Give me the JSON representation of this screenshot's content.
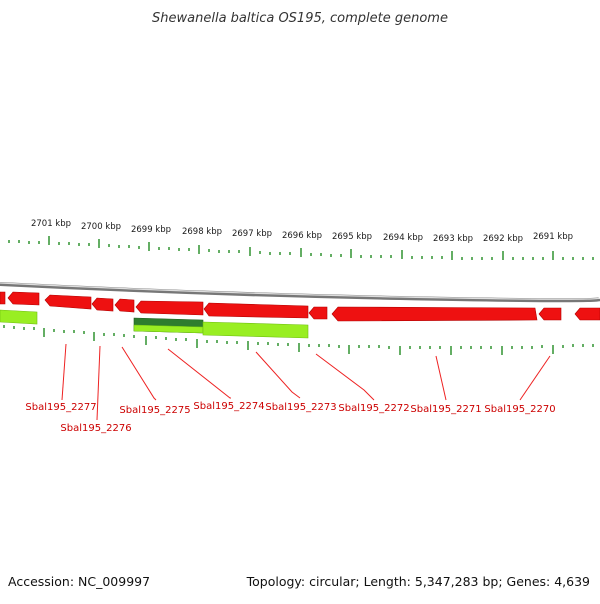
{
  "title": "Shewanella baltica OS195, complete genome",
  "footer": {
    "accession": "Accession: NC_009997",
    "summary": "Topology: circular; Length: 5,347,283 bp; Genes: 4,639"
  },
  "colors": {
    "gene_red": "#ee1111",
    "gene_red_dark": "#b30000",
    "feature_light_green": "#99ee22",
    "feature_dark_green": "#2e7d2e",
    "tick_green": "#228b22",
    "backbone_grey": "#888888",
    "label_red": "#cc0000"
  },
  "kbp_labels": [
    "2701 kbp",
    "2700 kbp",
    "2699 kbp",
    "2698 kbp",
    "2697 kbp",
    "2696 kbp",
    "2695 kbp",
    "2694 kbp",
    "2693 kbp",
    "2692 kbp",
    "2691 kbp"
  ],
  "gene_labels": [
    "Sbal195_2277",
    "Sbal195_2276",
    "Sbal195_2275",
    "Sbal195_2274",
    "Sbal195_2273",
    "Sbal195_2272",
    "Sbal195_2271",
    "Sbal195_2270"
  ]
}
